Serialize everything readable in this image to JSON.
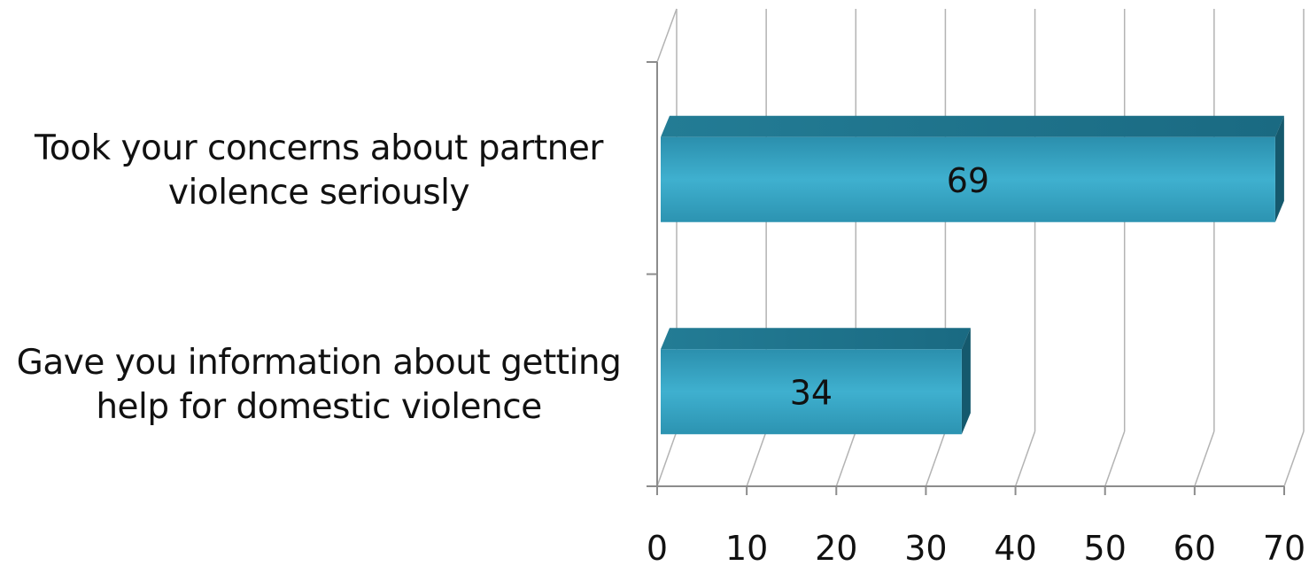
{
  "chart_data": {
    "type": "bar",
    "orientation": "horizontal",
    "style": "3d",
    "categories": [
      {
        "line1": "Took your concerns about partner",
        "line2": "violence seriously"
      },
      {
        "line1": "Gave you information about getting",
        "line2": "help for domestic violence"
      }
    ],
    "values": [
      69,
      34
    ],
    "data_labels": [
      "69",
      "34"
    ],
    "xlim": [
      0,
      70
    ],
    "x_ticks": [
      0,
      10,
      20,
      30,
      40,
      50,
      60,
      70
    ],
    "x_tick_labels": [
      "0",
      "10",
      "20",
      "30",
      "40",
      "50",
      "60",
      "70"
    ],
    "grid": true,
    "legend": "none",
    "title": "",
    "xlabel": "",
    "ylabel": "",
    "colors": {
      "bar_front": "#2f9fbf",
      "bar_top": "#1b6f87",
      "bar_side": "#15596d",
      "grid": "#b3b3b3",
      "axis": "#8c8c8c",
      "text": "#111111"
    }
  }
}
